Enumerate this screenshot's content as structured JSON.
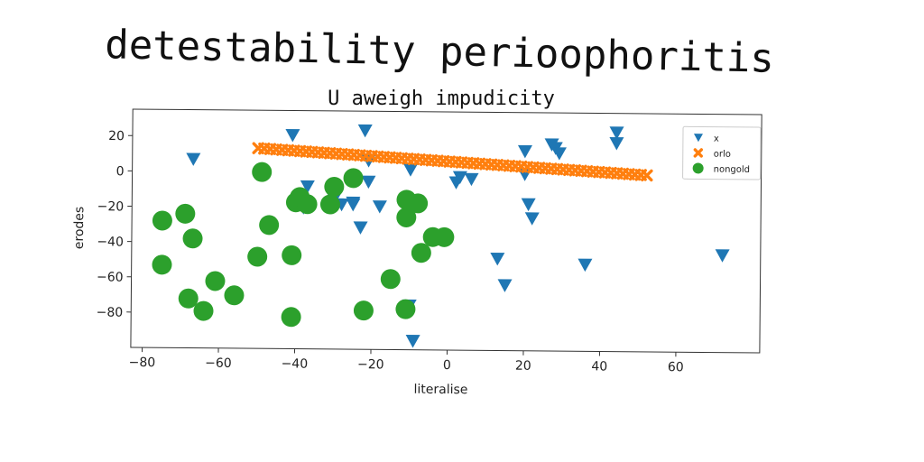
{
  "chart_data": {
    "type": "scatter",
    "suptitle": "detestability perioophoritis",
    "title": "U aweigh impudicity",
    "xlabel": "literalise",
    "ylabel": "erodes",
    "xlim": [
      -83,
      82
    ],
    "ylim": [
      -100,
      35
    ],
    "xticks": [
      -80,
      -60,
      -40,
      -20,
      0,
      20,
      40,
      60
    ],
    "yticks": [
      20,
      0,
      -20,
      -40,
      -60,
      -80
    ],
    "grid": false,
    "legend_position": "top-right",
    "series": [
      {
        "name": "x",
        "marker": "triangle-down",
        "color": "#1f77b4",
        "points": [
          [
            -67,
            7
          ],
          [
            -41,
            21
          ],
          [
            -22,
            24
          ],
          [
            -37,
            -8
          ],
          [
            -38,
            -20
          ],
          [
            -30,
            -15
          ],
          [
            -28,
            -18
          ],
          [
            -25,
            -18
          ],
          [
            -25,
            -17
          ],
          [
            -23,
            -31
          ],
          [
            -21,
            -5
          ],
          [
            -21,
            7
          ],
          [
            -18,
            -19
          ],
          [
            -10,
            -75
          ],
          [
            -10,
            2
          ],
          [
            -9,
            -95
          ],
          [
            2,
            -5
          ],
          [
            3,
            -2
          ],
          [
            6,
            -3
          ],
          [
            13,
            -48
          ],
          [
            15,
            -63
          ],
          [
            20,
            13
          ],
          [
            20,
            0
          ],
          [
            21,
            -17
          ],
          [
            22,
            -25
          ],
          [
            27,
            17
          ],
          [
            28,
            15
          ],
          [
            29,
            12
          ],
          [
            36,
            -51
          ],
          [
            44,
            24
          ],
          [
            44,
            18
          ],
          [
            72,
            -45
          ]
        ]
      },
      {
        "name": "orlo",
        "marker": "x",
        "color": "#ff7f0e",
        "x_start": -50,
        "x_end": 52,
        "y_start": 13.5,
        "y_end": 0,
        "count": 66
      },
      {
        "name": "nongold",
        "marker": "circle",
        "color": "#2ca02c",
        "points": [
          [
            -75,
            -28
          ],
          [
            -75,
            -53
          ],
          [
            -69,
            -24
          ],
          [
            -68,
            -72
          ],
          [
            -67,
            -38
          ],
          [
            -64,
            -79
          ],
          [
            -61,
            -62
          ],
          [
            -56,
            -70
          ],
          [
            -50,
            -48
          ],
          [
            -49,
            0
          ],
          [
            -47,
            -30
          ],
          [
            -41,
            -47
          ],
          [
            -41,
            -82
          ],
          [
            -40,
            -17
          ],
          [
            -39,
            -14
          ],
          [
            -37,
            -18
          ],
          [
            -31,
            -18
          ],
          [
            -30,
            -8
          ],
          [
            -25,
            -3
          ],
          [
            -22,
            -78
          ],
          [
            -15,
            -60
          ],
          [
            -11,
            -77
          ],
          [
            -11,
            -25
          ],
          [
            -11,
            -15
          ],
          [
            -8,
            -17
          ],
          [
            -7,
            -45
          ],
          [
            -4,
            -36
          ],
          [
            -1,
            -36
          ]
        ]
      }
    ]
  }
}
